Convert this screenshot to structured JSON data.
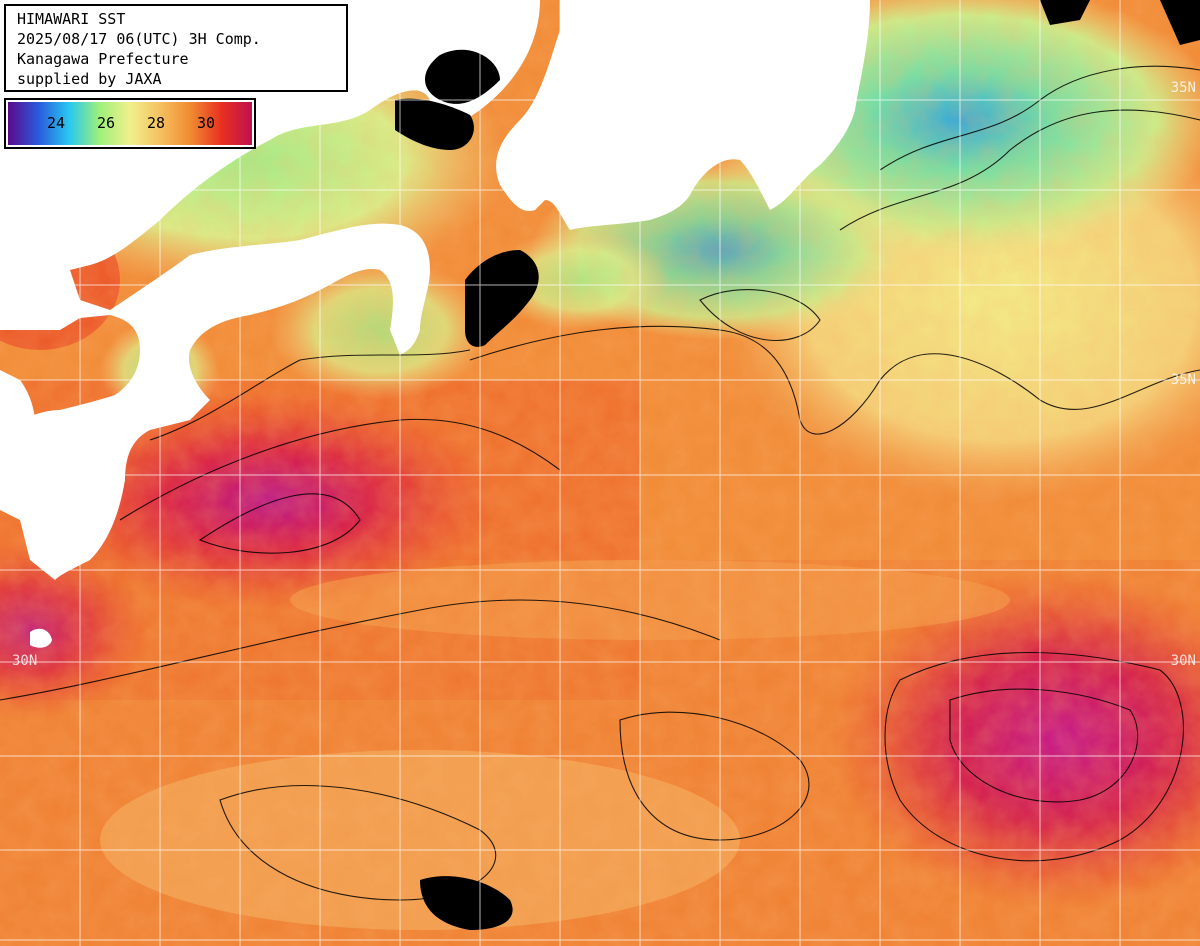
{
  "header": {
    "line1": "HIMAWARI SST",
    "line2": "2025/08/17 06(UTC) 3H Comp.",
    "line3": "Kanagawa Prefecture",
    "line4": "supplied by JAXA"
  },
  "legend": {
    "ticks": [
      "24",
      "26",
      "28",
      "30"
    ],
    "colors": [
      "#5a0a8c",
      "#2a5adc",
      "#28c8f0",
      "#9ef07a",
      "#f0f08c",
      "#f5c060",
      "#f08a30",
      "#e83020",
      "#c01050"
    ]
  },
  "grid": {
    "lat_labels_left": [
      "30N"
    ],
    "lat_labels_right": [
      "35N",
      "30N"
    ]
  },
  "map": {
    "land_color": "#ffffff",
    "nodata_color": "#000000",
    "grid_color": "#ffffff"
  }
}
